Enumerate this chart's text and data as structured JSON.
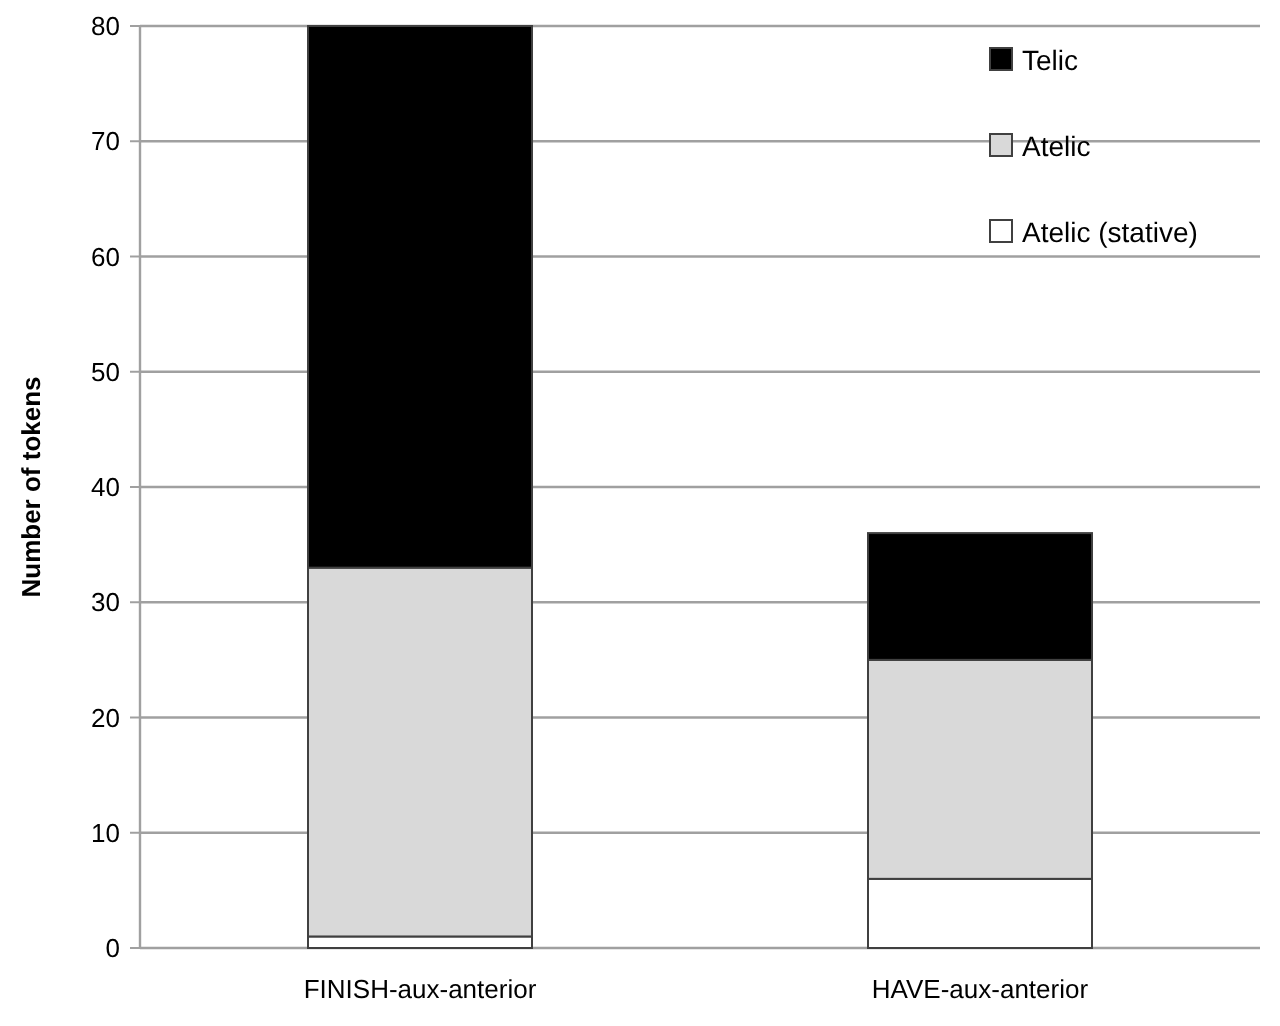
{
  "chart_data": {
    "type": "bar",
    "stacked": true,
    "ylabel": "Number of tokens",
    "categories": [
      "FINISH-aux-anterior",
      "HAVE-aux-anterior"
    ],
    "series": [
      {
        "name": "Atelic (stative)",
        "color": "#ffffff",
        "values": [
          1,
          6
        ]
      },
      {
        "name": "Atelic",
        "color": "#d9d9d9",
        "values": [
          32,
          19
        ]
      },
      {
        "name": "Telic",
        "color": "#000000",
        "values": [
          47,
          11
        ]
      }
    ],
    "ylim": [
      0,
      80
    ],
    "yticks": [
      0,
      10,
      20,
      30,
      40,
      50,
      60,
      70,
      80
    ],
    "grid": "y",
    "legend": "top right"
  }
}
